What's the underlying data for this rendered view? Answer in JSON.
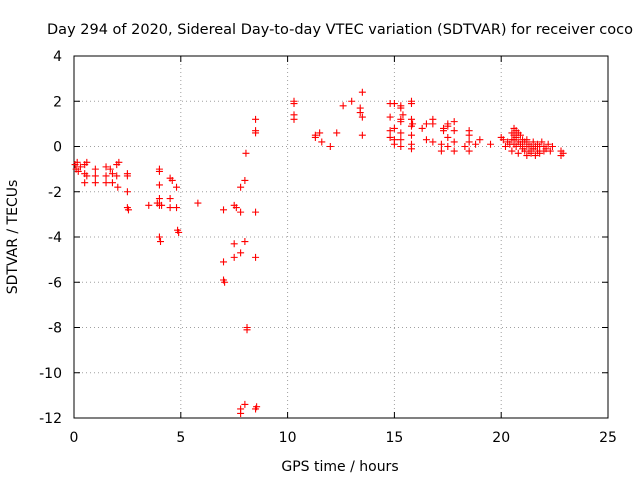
{
  "chart_data": {
    "type": "scatter",
    "title": "Day 294 of 2020, Sidereal Day-to-day VTEC variation (SDTVAR) for receiver coco",
    "xlabel": "GPS time / hours",
    "ylabel": "SDTVAR / TECUs",
    "xlim": [
      0,
      25
    ],
    "ylim": [
      -12,
      4
    ],
    "xticks": [
      0,
      5,
      10,
      15,
      20,
      25
    ],
    "yticks": [
      4,
      2,
      0,
      -2,
      -4,
      -6,
      -8,
      -10,
      -12
    ],
    "grid": true,
    "marker": "+",
    "color": "#ff0000",
    "series": [
      {
        "name": "SDTVAR",
        "points": [
          [
            0.05,
            -0.8
          ],
          [
            0.1,
            -1.0
          ],
          [
            0.15,
            -0.7
          ],
          [
            0.2,
            -1.1
          ],
          [
            0.3,
            -0.9
          ],
          [
            0.5,
            -0.8
          ],
          [
            0.5,
            -1.2
          ],
          [
            0.5,
            -1.6
          ],
          [
            0.6,
            -1.3
          ],
          [
            0.6,
            -0.7
          ],
          [
            1.0,
            -1.0
          ],
          [
            1.0,
            -1.3
          ],
          [
            1.0,
            -1.6
          ],
          [
            1.5,
            -0.9
          ],
          [
            1.5,
            -1.3
          ],
          [
            1.5,
            -1.6
          ],
          [
            1.7,
            -1.0
          ],
          [
            1.8,
            -1.2
          ],
          [
            1.8,
            -1.6
          ],
          [
            2.0,
            -0.8
          ],
          [
            2.0,
            -1.3
          ],
          [
            2.05,
            -1.8
          ],
          [
            2.1,
            -0.7
          ],
          [
            2.5,
            -1.2
          ],
          [
            2.5,
            -1.3
          ],
          [
            2.5,
            -2.0
          ],
          [
            2.5,
            -2.7
          ],
          [
            2.55,
            -2.8
          ],
          [
            3.5,
            -2.6
          ],
          [
            3.9,
            -2.5
          ],
          [
            4.0,
            -1.0
          ],
          [
            4.0,
            -1.1
          ],
          [
            4.0,
            -1.7
          ],
          [
            4.0,
            -2.3
          ],
          [
            4.0,
            -2.6
          ],
          [
            4.0,
            -4.0
          ],
          [
            4.05,
            -4.2
          ],
          [
            4.1,
            -2.6
          ],
          [
            4.5,
            -1.4
          ],
          [
            4.5,
            -2.3
          ],
          [
            4.5,
            -2.7
          ],
          [
            4.6,
            -1.5
          ],
          [
            4.8,
            -1.8
          ],
          [
            4.8,
            -2.7
          ],
          [
            4.85,
            -3.7
          ],
          [
            4.9,
            -3.8
          ],
          [
            5.8,
            -2.5
          ],
          [
            7.0,
            -5.9
          ],
          [
            7.0,
            -5.1
          ],
          [
            7.0,
            -2.8
          ],
          [
            7.05,
            -6.0
          ],
          [
            7.5,
            -2.6
          ],
          [
            7.5,
            -4.9
          ],
          [
            7.5,
            -4.3
          ],
          [
            7.6,
            -2.7
          ],
          [
            7.8,
            -1.8
          ],
          [
            7.8,
            -2.9
          ],
          [
            7.8,
            -4.7
          ],
          [
            7.8,
            -11.6
          ],
          [
            7.8,
            -11.8
          ],
          [
            8.0,
            -1.5
          ],
          [
            8.0,
            -4.2
          ],
          [
            8.0,
            -11.4
          ],
          [
            8.05,
            -0.3
          ],
          [
            8.1,
            -8.0
          ],
          [
            8.1,
            -8.1
          ],
          [
            8.5,
            1.2
          ],
          [
            8.5,
            0.7
          ],
          [
            8.5,
            0.6
          ],
          [
            8.5,
            -2.9
          ],
          [
            8.5,
            -4.9
          ],
          [
            8.5,
            -11.6
          ],
          [
            8.55,
            -11.5
          ],
          [
            10.3,
            1.9
          ],
          [
            10.3,
            2.0
          ],
          [
            10.3,
            1.4
          ],
          [
            10.3,
            1.2
          ],
          [
            11.3,
            0.5
          ],
          [
            11.3,
            0.4
          ],
          [
            11.5,
            0.6
          ],
          [
            11.6,
            0.2
          ],
          [
            12.0,
            0.0
          ],
          [
            12.3,
            0.6
          ],
          [
            12.6,
            1.8
          ],
          [
            13.0,
            2.0
          ],
          [
            13.4,
            1.7
          ],
          [
            13.4,
            1.5
          ],
          [
            13.5,
            2.4
          ],
          [
            13.5,
            1.3
          ],
          [
            13.5,
            0.5
          ],
          [
            14.8,
            1.9
          ],
          [
            14.8,
            1.3
          ],
          [
            14.8,
            0.7
          ],
          [
            14.8,
            0.4
          ],
          [
            15.0,
            1.9
          ],
          [
            15.0,
            0.8
          ],
          [
            15.0,
            0.3
          ],
          [
            15.0,
            0.1
          ],
          [
            15.3,
            1.8
          ],
          [
            15.3,
            1.7
          ],
          [
            15.3,
            1.2
          ],
          [
            15.3,
            1.1
          ],
          [
            15.3,
            0.6
          ],
          [
            15.3,
            0.3
          ],
          [
            15.3,
            0.0
          ],
          [
            15.4,
            1.4
          ],
          [
            15.8,
            2.0
          ],
          [
            15.8,
            1.9
          ],
          [
            15.8,
            1.2
          ],
          [
            15.8,
            0.9
          ],
          [
            15.8,
            0.5
          ],
          [
            15.8,
            0.1
          ],
          [
            15.8,
            -0.1
          ],
          [
            15.85,
            1.0
          ],
          [
            16.3,
            0.8
          ],
          [
            16.5,
            1.0
          ],
          [
            16.5,
            0.3
          ],
          [
            16.8,
            1.2
          ],
          [
            16.8,
            1.0
          ],
          [
            16.8,
            0.2
          ],
          [
            17.2,
            0.1
          ],
          [
            17.2,
            -0.2
          ],
          [
            17.3,
            0.8
          ],
          [
            17.3,
            0.7
          ],
          [
            17.5,
            1.0
          ],
          [
            17.5,
            0.9
          ],
          [
            17.5,
            0.4
          ],
          [
            17.5,
            0.0
          ],
          [
            17.8,
            1.1
          ],
          [
            17.8,
            0.7
          ],
          [
            17.8,
            0.2
          ],
          [
            17.8,
            -0.2
          ],
          [
            18.3,
            0.0
          ],
          [
            18.5,
            0.7
          ],
          [
            18.5,
            0.5
          ],
          [
            18.5,
            0.2
          ],
          [
            18.5,
            -0.2
          ],
          [
            18.8,
            0.1
          ],
          [
            19.0,
            0.3
          ],
          [
            19.5,
            0.1
          ],
          [
            20.0,
            0.4
          ],
          [
            20.1,
            0.3
          ],
          [
            20.2,
            0.0
          ],
          [
            20.3,
            0.2
          ],
          [
            20.4,
            0.1
          ],
          [
            20.5,
            0.6
          ],
          [
            20.5,
            0.3
          ],
          [
            20.5,
            -0.2
          ],
          [
            20.6,
            0.8
          ],
          [
            20.6,
            0.5
          ],
          [
            20.6,
            0.3
          ],
          [
            20.6,
            0.1
          ],
          [
            20.7,
            0.7
          ],
          [
            20.7,
            0.4
          ],
          [
            20.7,
            0.0
          ],
          [
            20.8,
            0.6
          ],
          [
            20.8,
            0.2
          ],
          [
            20.8,
            -0.3
          ],
          [
            20.9,
            0.5
          ],
          [
            20.9,
            0.1
          ],
          [
            21.0,
            0.3
          ],
          [
            21.0,
            0.0
          ],
          [
            21.0,
            -0.1
          ],
          [
            21.1,
            0.2
          ],
          [
            21.1,
            -0.2
          ],
          [
            21.2,
            0.3
          ],
          [
            21.2,
            0.0
          ],
          [
            21.2,
            -0.4
          ],
          [
            21.3,
            0.1
          ],
          [
            21.3,
            -0.2
          ],
          [
            21.4,
            0.0
          ],
          [
            21.4,
            -0.3
          ],
          [
            21.5,
            0.2
          ],
          [
            21.5,
            -0.1
          ],
          [
            21.6,
            0.0
          ],
          [
            21.6,
            -0.4
          ],
          [
            21.7,
            0.1
          ],
          [
            21.7,
            -0.2
          ],
          [
            21.8,
            0.0
          ],
          [
            21.8,
            -0.3
          ],
          [
            21.9,
            0.2
          ],
          [
            22.0,
            0.0
          ],
          [
            22.0,
            -0.2
          ],
          [
            22.1,
            -0.1
          ],
          [
            22.2,
            0.1
          ],
          [
            22.3,
            -0.2
          ],
          [
            22.4,
            0.0
          ],
          [
            22.8,
            -0.2
          ],
          [
            22.9,
            -0.3
          ],
          [
            22.8,
            -0.4
          ]
        ]
      }
    ]
  }
}
